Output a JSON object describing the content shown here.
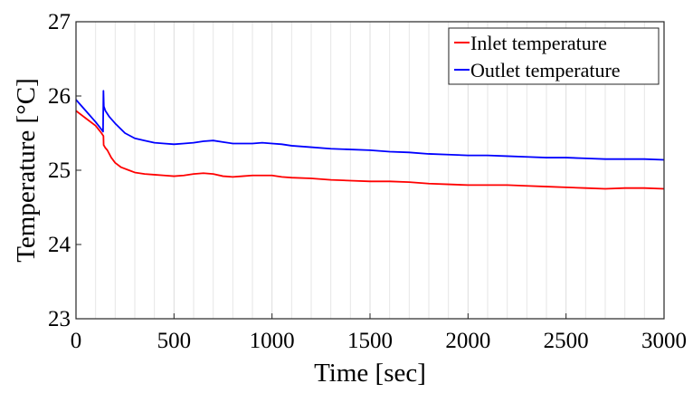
{
  "chart_data": {
    "type": "line",
    "title": "",
    "xlabel": "Time [sec]",
    "ylabel": "Temperature [°C]",
    "xlim": [
      0,
      3000
    ],
    "ylim": [
      23,
      27
    ],
    "xticks": [
      0,
      500,
      1000,
      1500,
      2000,
      2500,
      3000
    ],
    "yticks": [
      23,
      24,
      25,
      26,
      27
    ],
    "xtick_labels": [
      "0",
      "500",
      "1000",
      "1500",
      "2000",
      "2500",
      "3000"
    ],
    "ytick_labels": [
      "23",
      "24",
      "25",
      "26",
      "27"
    ],
    "grid": true,
    "legend_position": "top-right",
    "series": [
      {
        "name": "Inlet temperature",
        "color": "#ff0000",
        "x": [
          0,
          50,
          100,
          130,
          140,
          141,
          150,
          160,
          180,
          200,
          230,
          270,
          300,
          350,
          400,
          450,
          500,
          550,
          600,
          650,
          700,
          750,
          800,
          850,
          900,
          950,
          1000,
          1050,
          1100,
          1200,
          1300,
          1400,
          1500,
          1600,
          1700,
          1800,
          1900,
          2000,
          2100,
          2200,
          2300,
          2400,
          2500,
          2600,
          2700,
          2800,
          2900,
          3000
        ],
        "y": [
          25.8,
          25.7,
          25.6,
          25.5,
          25.46,
          25.34,
          25.3,
          25.27,
          25.17,
          25.1,
          25.04,
          25.0,
          24.97,
          24.95,
          24.94,
          24.93,
          24.92,
          24.93,
          24.95,
          24.96,
          24.95,
          24.92,
          24.91,
          24.92,
          24.93,
          24.93,
          24.93,
          24.91,
          24.9,
          24.89,
          24.87,
          24.86,
          24.85,
          24.85,
          24.84,
          24.82,
          24.81,
          24.8,
          24.8,
          24.8,
          24.79,
          24.78,
          24.77,
          24.76,
          24.75,
          24.76,
          24.76,
          24.75
        ]
      },
      {
        "name": "Outlet temperature",
        "color": "#0000ff",
        "x": [
          0,
          50,
          100,
          130,
          138,
          140,
          142,
          150,
          170,
          200,
          250,
          300,
          350,
          400,
          450,
          500,
          550,
          600,
          650,
          700,
          750,
          800,
          850,
          900,
          950,
          1000,
          1050,
          1100,
          1200,
          1300,
          1400,
          1500,
          1600,
          1700,
          1800,
          1900,
          2000,
          2100,
          2200,
          2300,
          2400,
          2500,
          2600,
          2700,
          2800,
          2900,
          3000
        ],
        "y": [
          25.95,
          25.8,
          25.65,
          25.55,
          25.52,
          26.07,
          25.86,
          25.8,
          25.72,
          25.63,
          25.5,
          25.43,
          25.4,
          25.37,
          25.36,
          25.35,
          25.36,
          25.37,
          25.39,
          25.4,
          25.38,
          25.36,
          25.36,
          25.36,
          25.37,
          25.36,
          25.35,
          25.33,
          25.31,
          25.29,
          25.28,
          25.27,
          25.25,
          25.24,
          25.22,
          25.21,
          25.2,
          25.2,
          25.19,
          25.18,
          25.17,
          25.17,
          25.16,
          25.15,
          25.15,
          25.15,
          25.14
        ]
      }
    ]
  }
}
